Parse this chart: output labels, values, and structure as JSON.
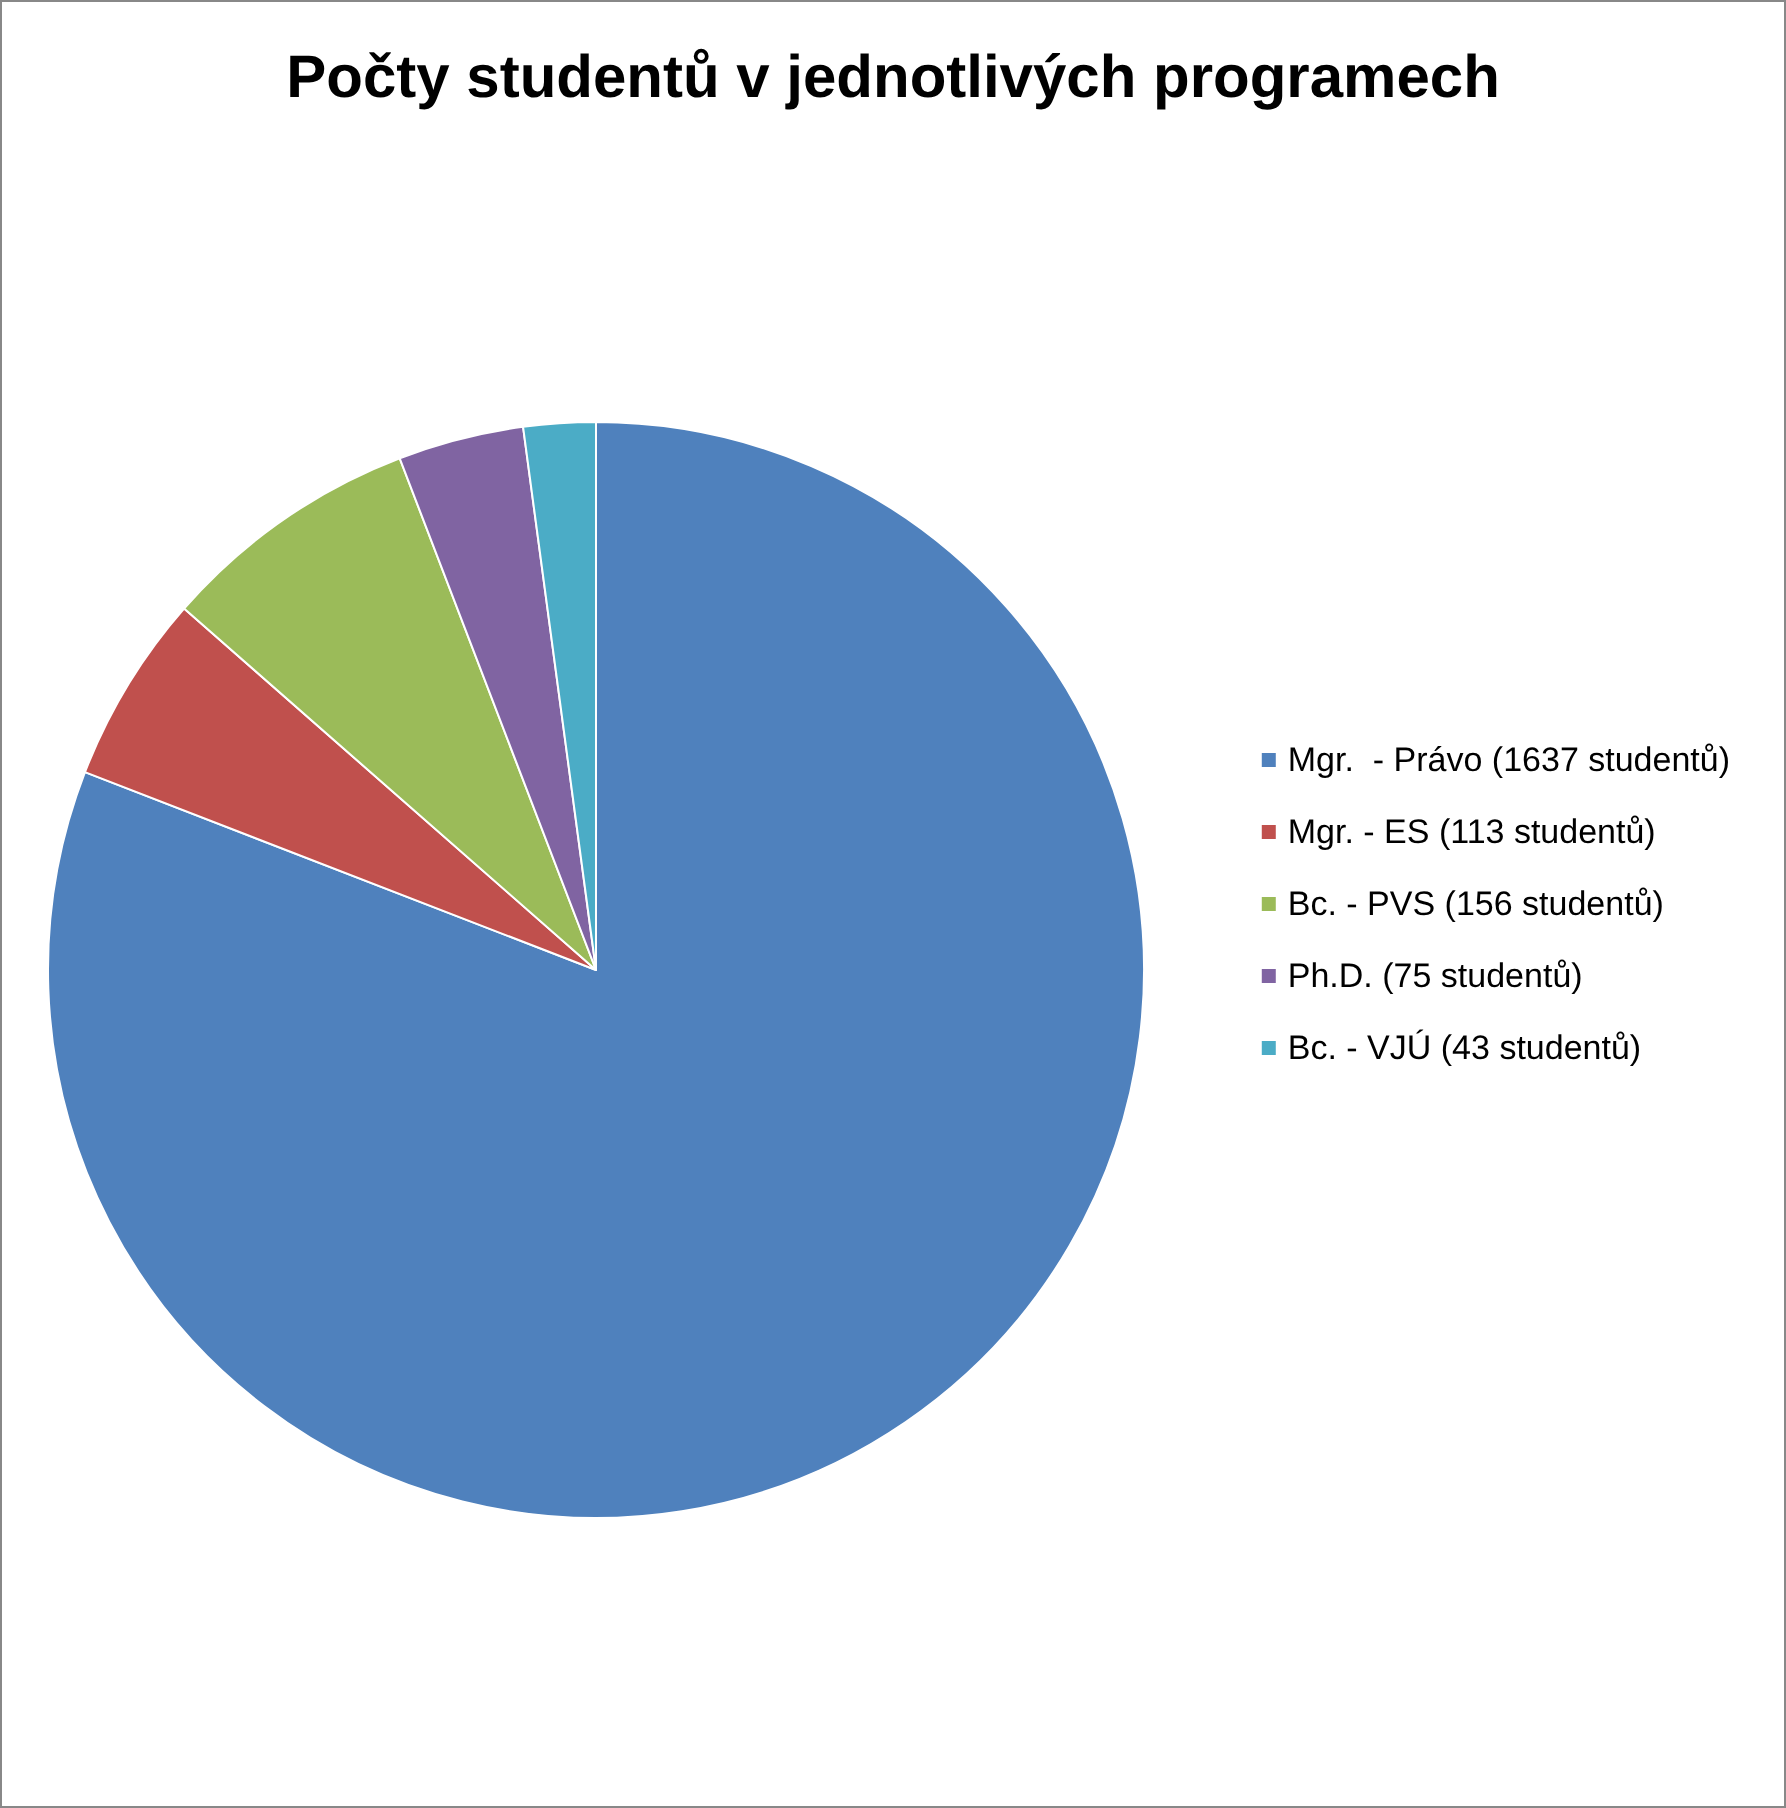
{
  "chart_data": {
    "type": "pie",
    "title": "Počty studentů v jednotlivých programech",
    "categories": [
      "Mgr.  - Právo (1637 studentů)",
      "Mgr. - ES (113 studentů)",
      "Bc. - PVS (156 studentů)",
      "Ph.D. (75 studentů)",
      "Bc. - VJÚ (43 studentů)"
    ],
    "values": [
      1637,
      113,
      156,
      75,
      43
    ],
    "colors": [
      "#4f81bd",
      "#c0504d",
      "#9bbb59",
      "#8064a2",
      "#4bacc6"
    ],
    "legend": "right"
  }
}
